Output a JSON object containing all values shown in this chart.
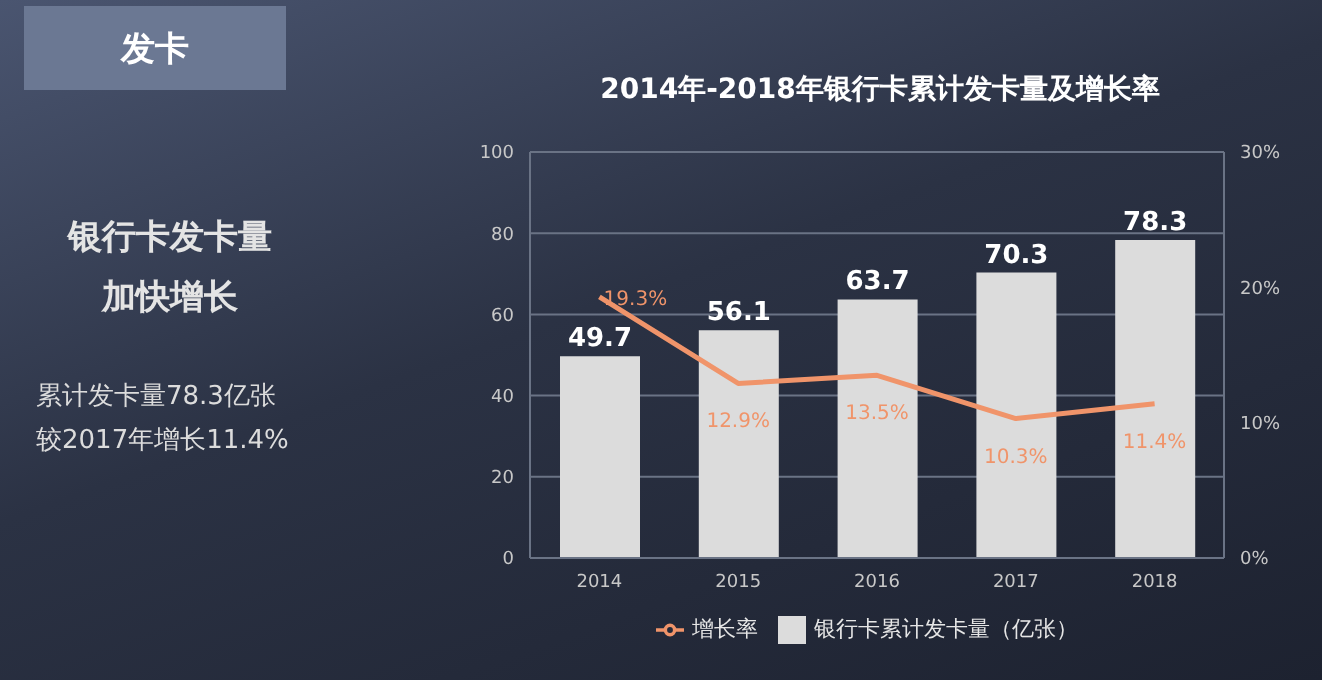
{
  "chart_data": {
    "type": "bar",
    "title": "2014年-2018年银行卡累计发卡量及增长率",
    "annotations": [
      "发卡",
      "银行卡发卡量",
      "加快增长",
      "累计发卡量78.3亿张",
      "较2017年增长11.4%"
    ],
    "categories": [
      "2014",
      "2015",
      "2016",
      "2017",
      "2018"
    ],
    "series": [
      {
        "name": "银行卡累计发卡量（亿张）",
        "color": "#dcdcdc",
        "values": [
          49.7,
          56.1,
          63.7,
          70.3,
          78.3
        ],
        "value_labels": [
          "49.7",
          "56.1",
          "63.7",
          "70.3",
          "78.3"
        ]
      },
      {
        "name": "增长率",
        "type": "line",
        "axis": "y2",
        "color": "#f0946a",
        "values": [
          19.3,
          12.9,
          13.5,
          10.3,
          11.4
        ],
        "value_labels": [
          "19.3%",
          "12.9%",
          "13.5%",
          "10.3%",
          "11.4%"
        ]
      }
    ],
    "ylim": [
      0,
      100
    ],
    "yticks": [
      0,
      20,
      40,
      60,
      80,
      100
    ],
    "y2lim": [
      0,
      30
    ],
    "y2ticks": [
      {
        "value": 0,
        "label": "0%"
      },
      {
        "value": 10,
        "label": "10%"
      },
      {
        "value": 20,
        "label": "20%"
      },
      {
        "value": 30,
        "label": "30%"
      }
    ],
    "grid": "y",
    "legend": "bottom",
    "marker": "none",
    "line_style": "solid"
  }
}
